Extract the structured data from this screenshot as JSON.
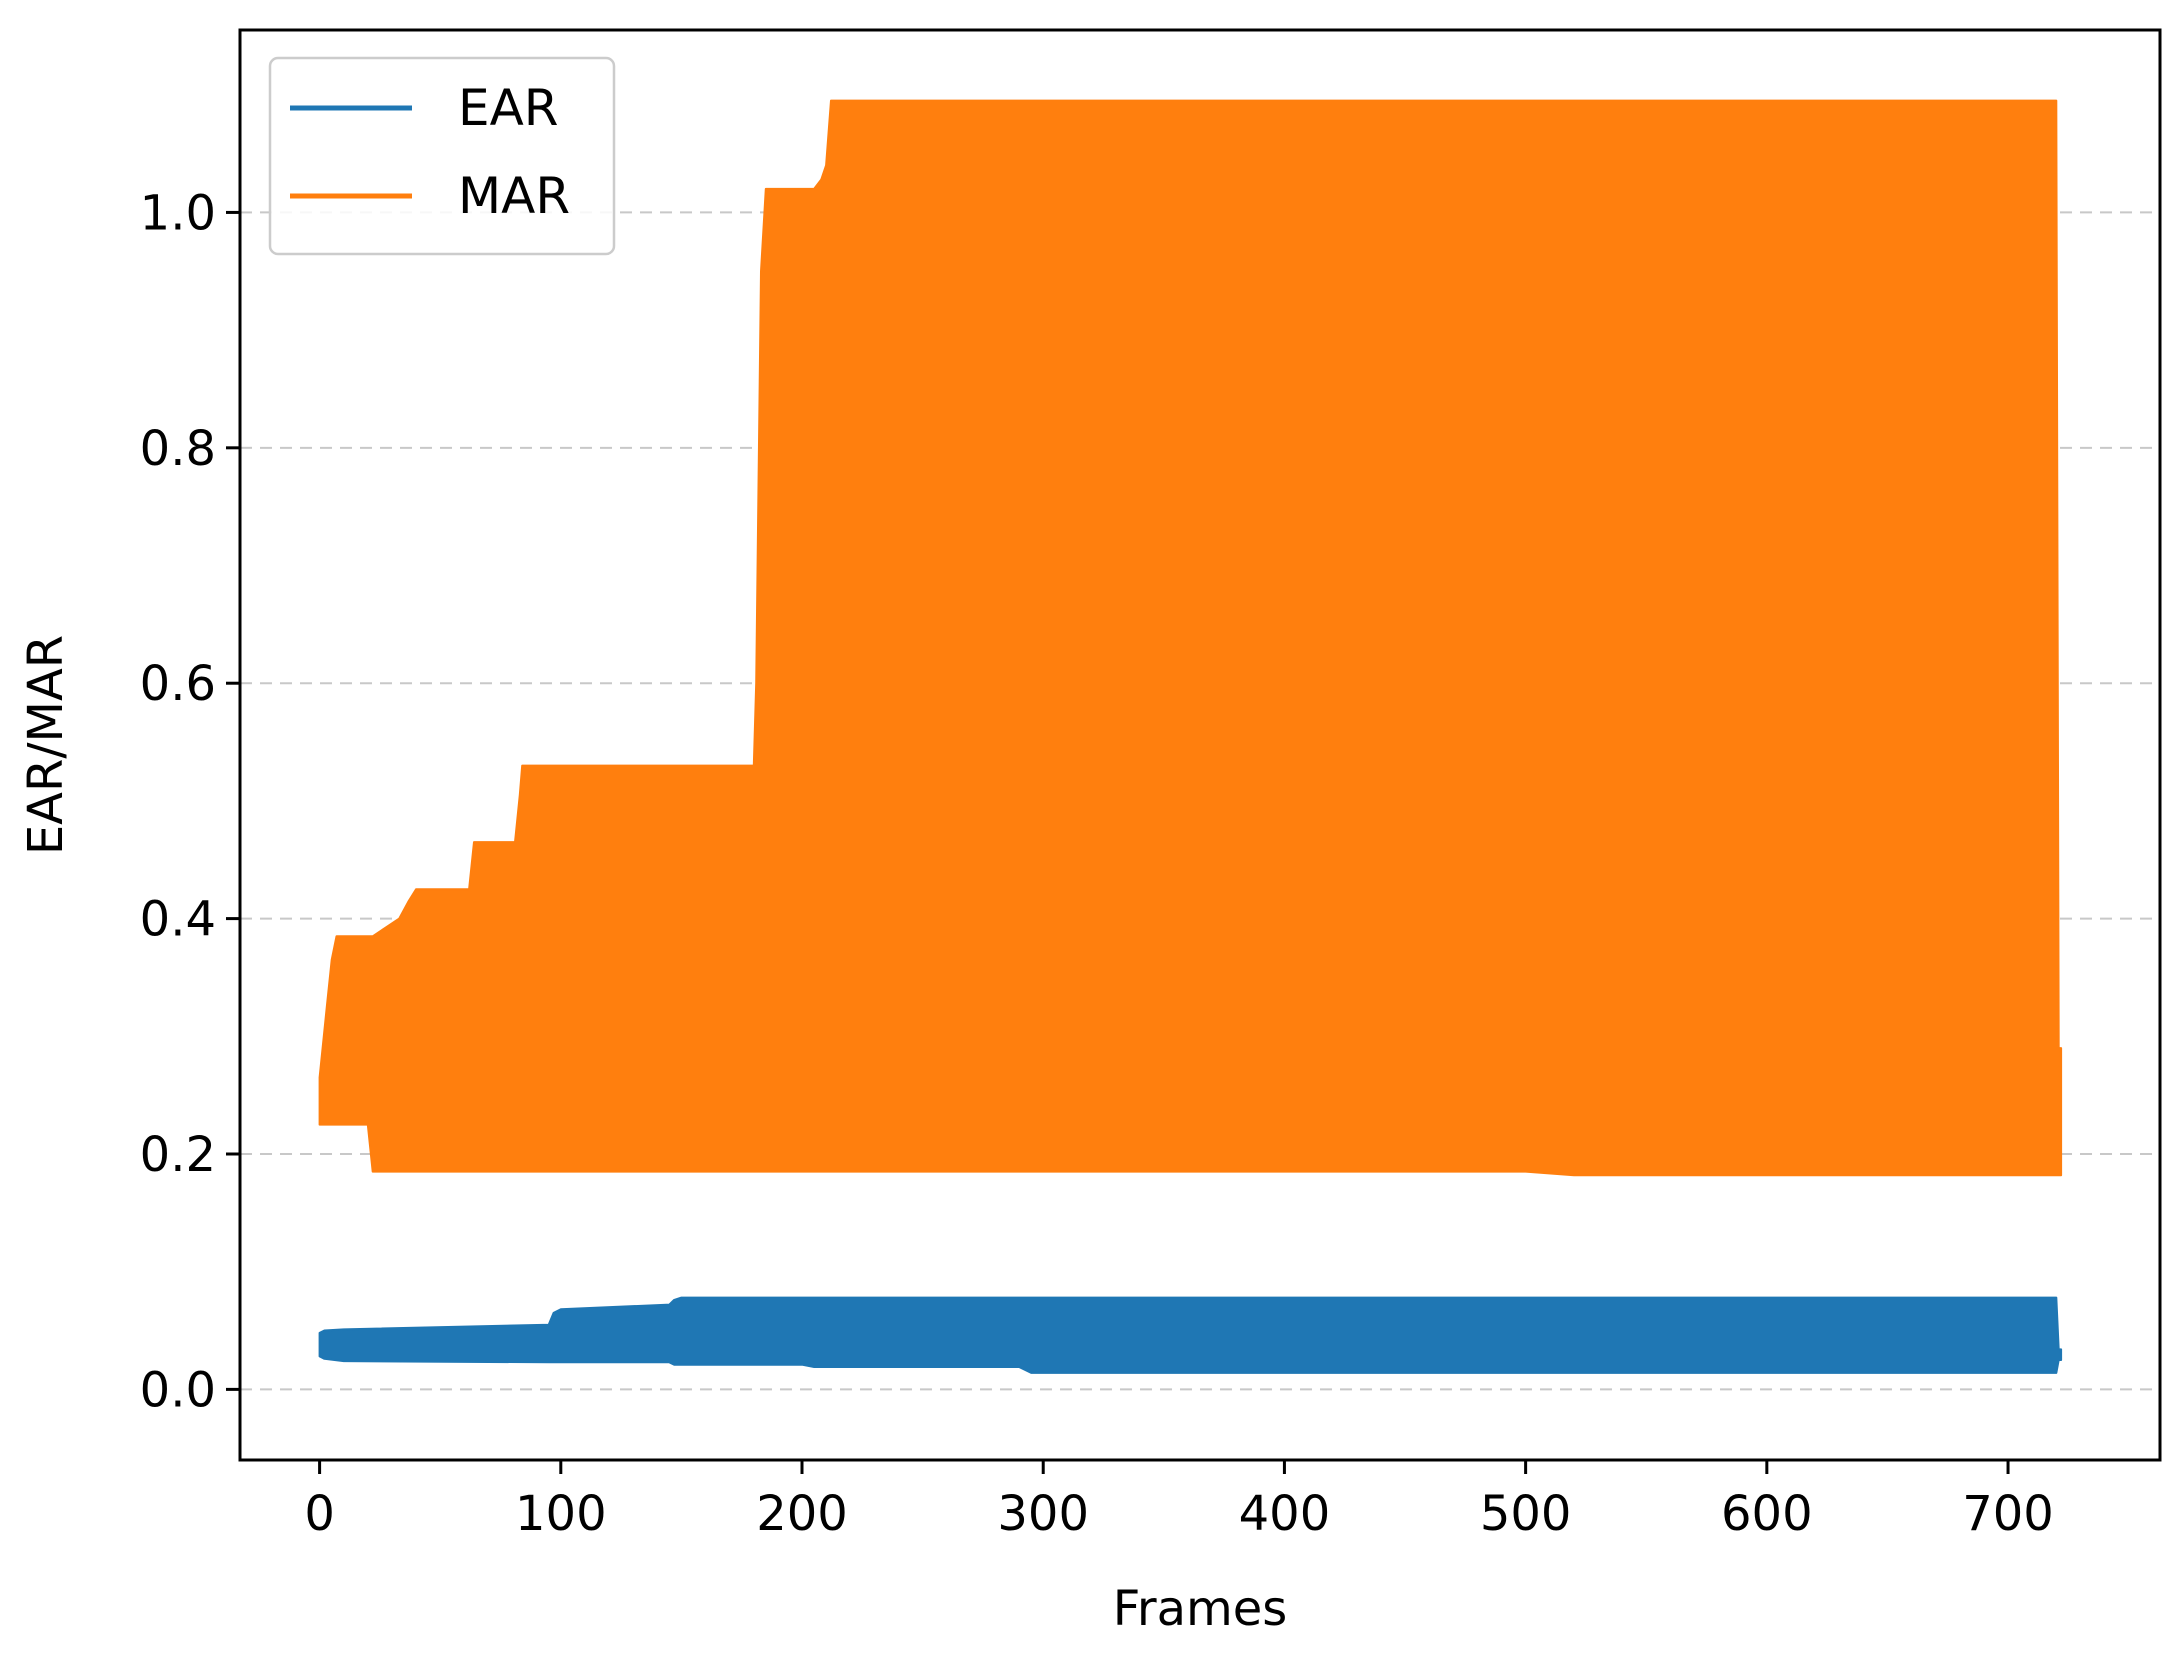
{
  "chart_data": {
    "type": "area",
    "title": "",
    "xlabel": "Frames",
    "ylabel": "EAR/MAR",
    "xlim": [
      -33,
      763
    ],
    "ylim": [
      -0.06,
      1.155
    ],
    "xticks": [
      0,
      100,
      200,
      300,
      400,
      500,
      600,
      700
    ],
    "yticks": [
      0.0,
      0.2,
      0.4,
      0.6,
      0.8,
      1.0
    ],
    "ytick_labels": [
      "0.0",
      "0.2",
      "0.4",
      "0.6",
      "0.8",
      "1.0"
    ],
    "grid": "horizontal dashed",
    "legend": "upper-left",
    "series": [
      {
        "name": "MAR",
        "color": "#ff7f0e",
        "x": [
          0,
          3,
          5,
          7,
          20,
          22,
          33,
          37,
          40,
          62,
          64,
          81,
          83,
          84,
          180,
          181,
          183,
          185,
          205,
          208,
          210,
          212,
          500,
          520,
          720,
          721,
          722
        ],
        "upper": [
          0.265,
          0.325,
          0.365,
          0.385,
          0.385,
          0.385,
          0.4,
          0.415,
          0.425,
          0.425,
          0.465,
          0.465,
          0.505,
          0.53,
          0.53,
          0.6,
          0.95,
          1.02,
          1.02,
          1.028,
          1.04,
          1.095,
          1.095,
          1.095,
          1.095,
          0.29,
          0.29
        ],
        "lower": [
          0.225,
          0.225,
          0.225,
          0.225,
          0.225,
          0.185,
          0.185,
          0.185,
          0.185,
          0.185,
          0.185,
          0.185,
          0.185,
          0.185,
          0.185,
          0.185,
          0.185,
          0.185,
          0.185,
          0.185,
          0.185,
          0.185,
          0.185,
          0.182,
          0.182,
          0.182,
          0.182
        ]
      },
      {
        "name": "EAR",
        "color": "#1f77b4",
        "x": [
          0,
          2,
          10,
          95,
          97,
          100,
          145,
          147,
          150,
          200,
          205,
          290,
          295,
          720,
          721,
          722
        ],
        "upper": [
          0.048,
          0.05,
          0.051,
          0.055,
          0.065,
          0.068,
          0.072,
          0.076,
          0.078,
          0.078,
          0.078,
          0.078,
          0.078,
          0.078,
          0.034,
          0.034
        ],
        "lower": [
          0.028,
          0.026,
          0.024,
          0.023,
          0.023,
          0.023,
          0.023,
          0.021,
          0.021,
          0.021,
          0.019,
          0.019,
          0.014,
          0.014,
          0.025,
          0.025
        ]
      }
    ]
  }
}
